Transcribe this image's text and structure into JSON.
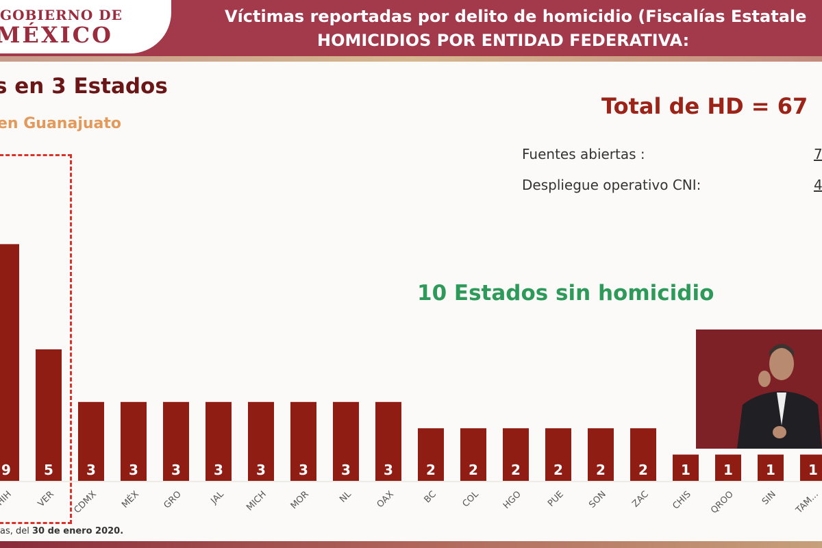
{
  "header": {
    "logo_line1": "GOBIERNO DE",
    "logo_line2": "MÉXICO",
    "title_line1": "Víctimas reportadas por delito de homicidio (Fiscalías Estatale",
    "title_line2": "HOMICIDIOS POR ENTIDAD FEDERATIVA:"
  },
  "subtitle": "s en 3 Estados",
  "subtitle2": "en Guanajuato",
  "total": "Total de HD = 67",
  "sources": [
    {
      "label": "Fuentes abiertas :",
      "value": "7"
    },
    {
      "label": "Despliegue operativo CNI:",
      "value": "4"
    }
  ],
  "no_homicide_note": "10 Estados sin homicidio",
  "footer": {
    "prefix": "as, del ",
    "date": "30 de enero 2020."
  },
  "colors": {
    "bar": "#8f1d14",
    "header": "#a23a4c",
    "highlight_box": "#d7332a",
    "note": "#2e9a5a"
  },
  "chart_data": {
    "type": "bar",
    "categories": [
      "CHIH",
      "VER",
      "CDMX",
      "MÉX",
      "GRO",
      "JAL",
      "MICH",
      "MOR",
      "NL",
      "OAX",
      "BC",
      "COL",
      "HGO",
      "PUE",
      "SON",
      "ZAC",
      "CHIS",
      "QROO",
      "SIN",
      "TAM..."
    ],
    "values": [
      9,
      5,
      3,
      3,
      3,
      3,
      3,
      3,
      3,
      3,
      2,
      2,
      2,
      2,
      2,
      2,
      1,
      1,
      1,
      1
    ],
    "data_labels": [
      "9",
      "5",
      "3",
      "3",
      "3",
      "3",
      "3",
      "3",
      "3",
      "3",
      "2",
      "2",
      "2",
      "2",
      "2",
      "2",
      "1",
      "1",
      "1",
      "1"
    ],
    "grid": false
  }
}
